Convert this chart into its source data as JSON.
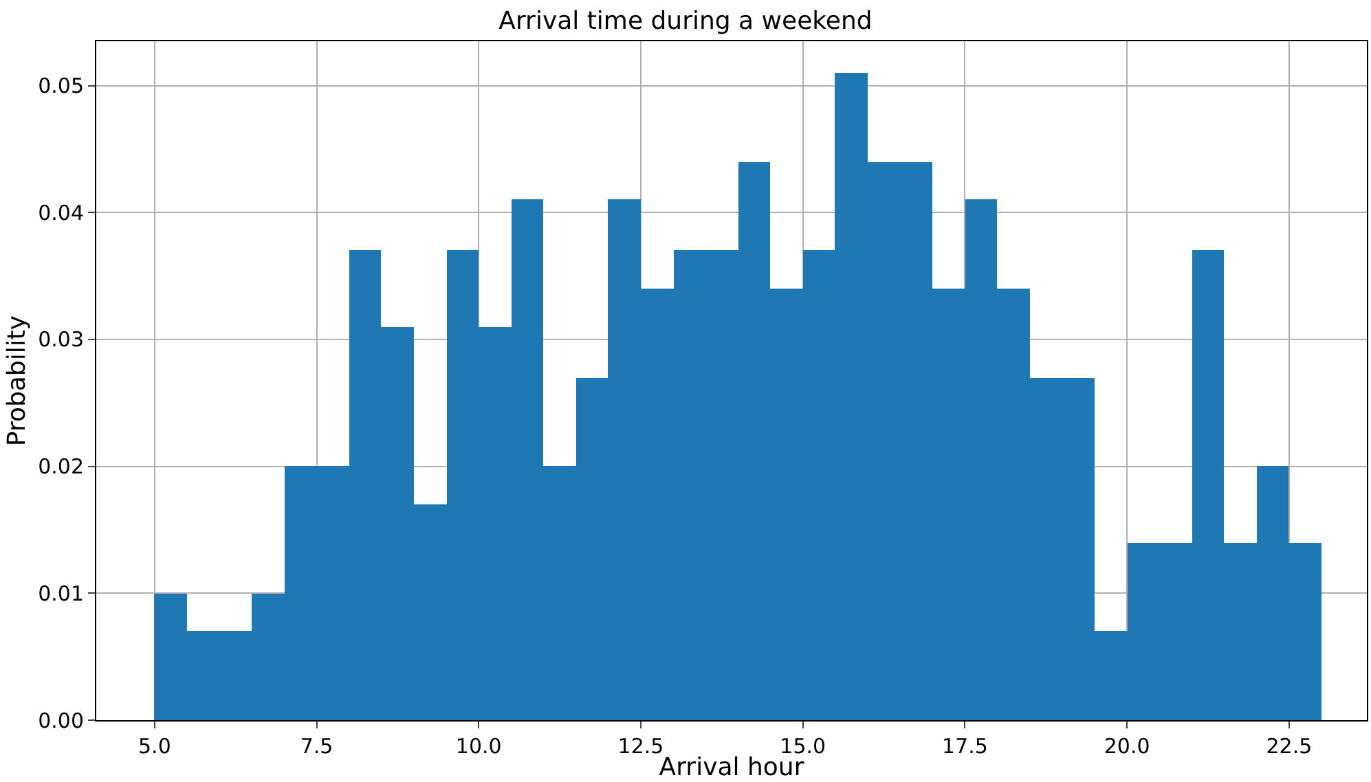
{
  "chart_data": {
    "type": "histogram",
    "title": "Arrival time during a weekend",
    "xlabel": "Arrival hour",
    "ylabel": "Probability",
    "bins": [
      5,
      5.5,
      6,
      6.5,
      7,
      7.5,
      8,
      8.5,
      9,
      9.5,
      10,
      10.5,
      11,
      11.5,
      12,
      12.5,
      13,
      13.5,
      14,
      14.5,
      15,
      15.5,
      16,
      16.5,
      17,
      17.5,
      18,
      18.5,
      19,
      19.5,
      20,
      20.5,
      21,
      21.5,
      22,
      22.5,
      23
    ],
    "values": [
      0.01,
      0.007,
      0.007,
      0.01,
      0.02,
      0.02,
      0.037,
      0.031,
      0.017,
      0.037,
      0.031,
      0.041,
      0.02,
      0.027,
      0.041,
      0.034,
      0.037,
      0.037,
      0.044,
      0.034,
      0.037,
      0.051,
      0.044,
      0.044,
      0.034,
      0.041,
      0.034,
      0.027,
      0.027,
      0.007,
      0.014,
      0.014,
      0.037,
      0.014,
      0.02,
      0.014
    ],
    "color": "#1f77b4",
    "xlim": [
      4.1,
      23.7
    ],
    "ylim": [
      0,
      0.0535
    ],
    "xticks": [
      {
        "value": 5,
        "label": "5.0"
      },
      {
        "value": 7.5,
        "label": "7.5"
      },
      {
        "value": 10,
        "label": "10.0"
      },
      {
        "value": 12.5,
        "label": "12.5"
      },
      {
        "value": 15,
        "label": "15.0"
      },
      {
        "value": 17.5,
        "label": "17.5"
      },
      {
        "value": 20,
        "label": "20.0"
      },
      {
        "value": 22.5,
        "label": "22.5"
      }
    ],
    "yticks": [
      {
        "value": 0,
        "label": "0.00"
      },
      {
        "value": 0.01,
        "label": "0.01"
      },
      {
        "value": 0.02,
        "label": "0.02"
      },
      {
        "value": 0.03,
        "label": "0.03"
      },
      {
        "value": 0.04,
        "label": "0.04"
      },
      {
        "value": 0.05,
        "label": "0.05"
      }
    ],
    "grid": true
  }
}
